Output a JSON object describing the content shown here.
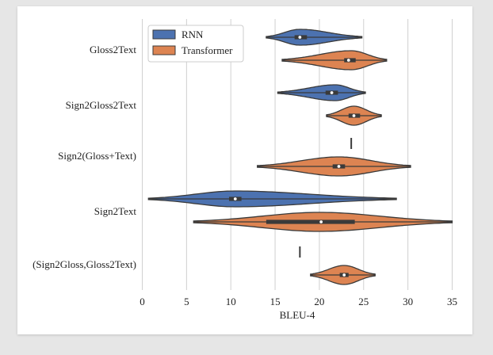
{
  "chart_data": {
    "type": "violin",
    "title": "",
    "xlabel": "BLEU-4",
    "ylabel": "",
    "xlim": [
      0,
      35
    ],
    "xticks": [
      0,
      5,
      10,
      15,
      20,
      25,
      30,
      35
    ],
    "grid": "vertical",
    "legend_position": "top-left",
    "categories": [
      "Gloss2Text",
      "Sign2Gloss2Text",
      "Sign2(Gloss+Text)",
      "Sign2Text",
      "(Sign2Gloss,Gloss2Text)"
    ],
    "series": [
      {
        "name": "RNN",
        "color": "#4c72b0",
        "violins": [
          {
            "category": "Gloss2Text",
            "min": 14.0,
            "q1": 17.2,
            "median": 17.8,
            "q3": 18.6,
            "max": 24.8,
            "mode": 17.8
          },
          {
            "category": "Sign2Gloss2Text",
            "min": 15.3,
            "q1": 20.7,
            "median": 21.4,
            "q3": 22.1,
            "max": 25.2,
            "mode": 21.8
          },
          {
            "category": "Sign2(Gloss+Text)",
            "min": 23.6,
            "q1": 23.6,
            "median": 23.6,
            "q3": 23.6,
            "max": 23.6,
            "mode": 23.6,
            "degenerate": true
          },
          {
            "category": "Sign2Text",
            "min": 0.7,
            "q1": 9.8,
            "median": 10.5,
            "q3": 11.2,
            "max": 28.7,
            "mode": 10.5
          },
          {
            "category": "(Sign2Gloss,Gloss2Text)",
            "min": 17.8,
            "q1": 17.8,
            "median": 17.8,
            "q3": 17.8,
            "max": 17.8,
            "mode": 17.8,
            "degenerate": true
          }
        ]
      },
      {
        "name": "Transformer",
        "color": "#dd8452",
        "violins": [
          {
            "category": "Gloss2Text",
            "min": 15.8,
            "q1": 22.8,
            "median": 23.3,
            "q3": 24.1,
            "max": 27.6,
            "mode": 23.6
          },
          {
            "category": "Sign2Gloss2Text",
            "min": 20.8,
            "q1": 23.3,
            "median": 23.9,
            "q3": 24.6,
            "max": 27.0,
            "mode": 23.9
          },
          {
            "category": "Sign2(Gloss+Text)",
            "min": 13.0,
            "q1": 21.5,
            "median": 22.2,
            "q3": 22.9,
            "max": 30.3,
            "mode": 22.2
          },
          {
            "category": "Sign2Text",
            "min": 5.8,
            "q1": 14.0,
            "median": 20.2,
            "q3": 24.0,
            "max": 35.0,
            "mode": 20.0
          },
          {
            "category": "(Sign2Gloss,Gloss2Text)",
            "min": 19.0,
            "q1": 22.3,
            "median": 22.8,
            "q3": 23.3,
            "max": 26.3,
            "mode": 22.8
          }
        ]
      }
    ]
  }
}
